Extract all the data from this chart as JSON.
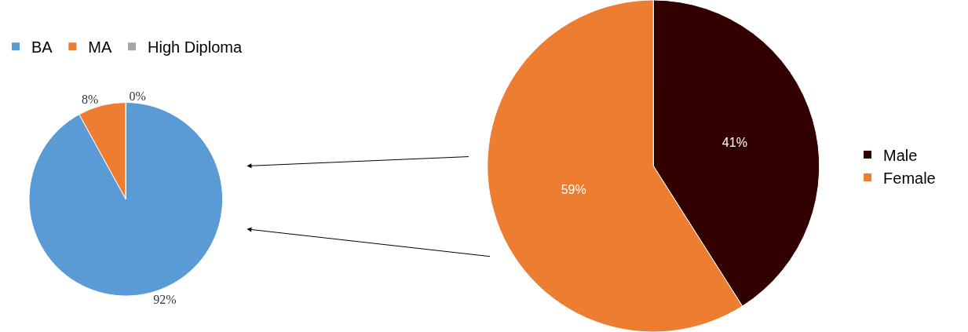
{
  "chart_data": [
    {
      "type": "pie",
      "categories": [
        "BA",
        "MA",
        "High Diploma"
      ],
      "values": [
        92,
        8,
        0
      ],
      "colors": [
        "#5b9bd5",
        "#ed7d31",
        "#a5a5a5"
      ],
      "value_labels": [
        "92%",
        "8%",
        "0%"
      ],
      "legend": "top"
    },
    {
      "type": "pie",
      "categories": [
        "Male",
        "Female"
      ],
      "values": [
        41,
        59
      ],
      "colors": [
        "#330000",
        "#ed7d31"
      ],
      "value_labels": [
        "41%",
        "59%"
      ],
      "legend": "right"
    }
  ]
}
